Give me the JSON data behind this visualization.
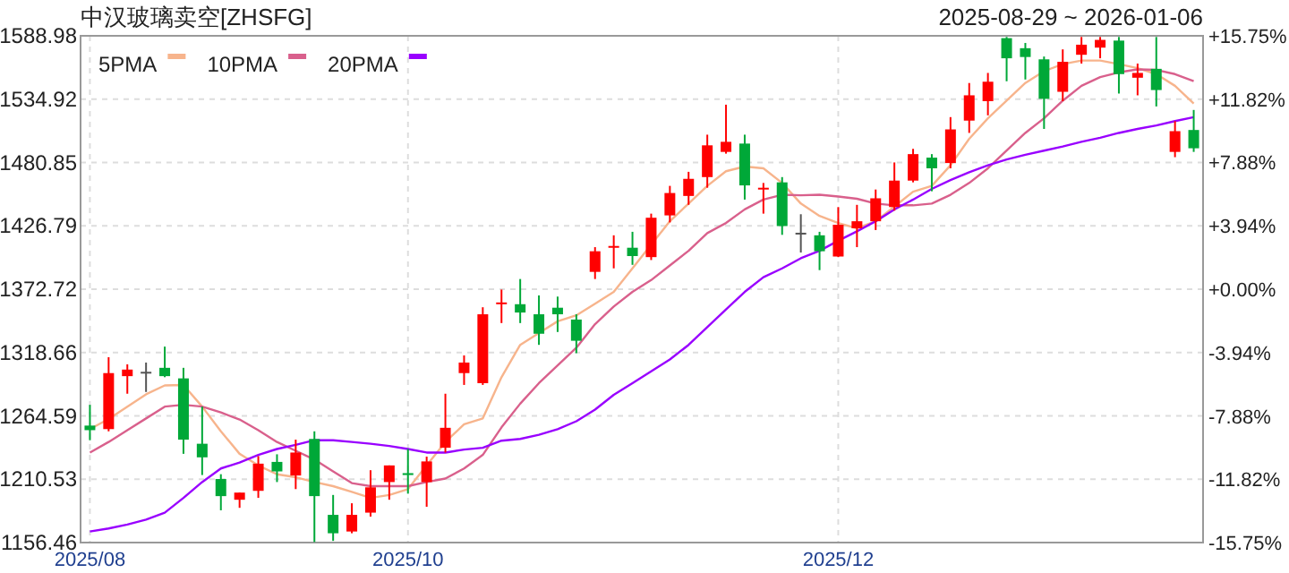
{
  "chart_data": {
    "type": "candlestick",
    "title": "中汉玻璃卖空[ZHSFG]",
    "subtitle": "2025-08-29 ~ 2026-01-06",
    "categories": [
      "2025/08",
      null,
      null,
      null,
      null,
      null,
      null,
      null,
      null,
      null,
      null,
      null,
      null,
      null,
      null,
      null,
      null,
      "2025/10",
      null,
      null,
      null,
      null,
      null,
      null,
      null,
      null,
      null,
      null,
      null,
      null,
      null,
      null,
      null,
      null,
      null,
      null,
      null,
      null,
      null,
      null,
      "2025/12",
      null,
      null,
      null,
      null,
      null,
      null,
      null,
      null,
      null,
      null,
      null,
      null,
      null,
      null,
      null,
      null,
      null,
      null,
      null
    ],
    "ohlc": [
      [
        1256.3,
        1274.0,
        1243.8,
        1252.4
      ],
      [
        1253.3,
        1314.7,
        1251.4,
        1301.1
      ],
      [
        1298.5,
        1308.6,
        1283.5,
        1304.1
      ],
      [
        1302.2,
        1310.1,
        1285.0,
        1302.2
      ],
      [
        1305.6,
        1323.7,
        1297.6,
        1298.5
      ],
      [
        1296.6,
        1305.6,
        1232.2,
        1244.3
      ],
      [
        1240.8,
        1272.5,
        1214.1,
        1229.2
      ],
      [
        1210.7,
        1214.8,
        1184.0,
        1196.1
      ],
      [
        1193.0,
        1199.1,
        1186.1,
        1199.1
      ],
      [
        1200.6,
        1230.3,
        1194.6,
        1223.8
      ],
      [
        1225.3,
        1231.8,
        1208.1,
        1217.2
      ],
      [
        1213.7,
        1244.3,
        1202.1,
        1233.3
      ],
      [
        1244.9,
        1251.4,
        1156.9,
        1196.1
      ],
      [
        1180.1,
        1197.1,
        1157.9,
        1164.4
      ],
      [
        1165.9,
        1190.0,
        1164.4,
        1180.1
      ],
      [
        1182.0,
        1218.2,
        1178.6,
        1203.6
      ],
      [
        1208.1,
        1222.3,
        1193.0,
        1222.3
      ],
      [
        1215.7,
        1236.3,
        1198.2,
        1214.1
      ],
      [
        1208.1,
        1229.8,
        1187.0,
        1225.7
      ],
      [
        1237.4,
        1283.5,
        1233.3,
        1254.4
      ],
      [
        1301.1,
        1316.2,
        1291.0,
        1310.1
      ],
      [
        1292.5,
        1357.3,
        1291.0,
        1351.3
      ],
      [
        1359.9,
        1372.4,
        1343.8,
        1361.4
      ],
      [
        1359.9,
        1381.4,
        1343.8,
        1352.8
      ],
      [
        1351.3,
        1367.4,
        1325.2,
        1334.7
      ],
      [
        1356.9,
        1366.4,
        1336.2,
        1351.3
      ],
      [
        1346.8,
        1351.3,
        1318.1,
        1328.7
      ],
      [
        1387.5,
        1408.6,
        1381.4,
        1405.1
      ],
      [
        1408.1,
        1418.7,
        1390.5,
        1409.6
      ],
      [
        1408.1,
        1421.7,
        1393.5,
        1401.0
      ],
      [
        1400.1,
        1437.2,
        1397.6,
        1433.7
      ],
      [
        1435.7,
        1460.9,
        1429.7,
        1454.8
      ],
      [
        1452.3,
        1472.9,
        1444.7,
        1466.9
      ],
      [
        1468.4,
        1504.6,
        1459.3,
        1495.5
      ],
      [
        1489.9,
        1530.2,
        1488.4,
        1498.5
      ],
      [
        1497.0,
        1504.6,
        1449.2,
        1461.3
      ],
      [
        1457.8,
        1463.4,
        1437.2,
        1459.3
      ],
      [
        1463.9,
        1468.4,
        1419.1,
        1426.6
      ],
      [
        1420.9,
        1436.7,
        1404.0,
        1420.9
      ],
      [
        1418.7,
        1421.7,
        1389.0,
        1405.1
      ],
      [
        1400.6,
        1442.8,
        1400.1,
        1427.7
      ],
      [
        1424.7,
        1444.7,
        1408.6,
        1430.7
      ],
      [
        1430.7,
        1457.8,
        1423.2,
        1450.3
      ],
      [
        1442.8,
        1480.9,
        1439.8,
        1465.4
      ],
      [
        1465.4,
        1492.5,
        1463.9,
        1488.0
      ],
      [
        1485.0,
        1488.0,
        1456.3,
        1475.9
      ],
      [
        1480.4,
        1519.6,
        1475.9,
        1509.1
      ],
      [
        1516.6,
        1548.7,
        1506.1,
        1538.2
      ],
      [
        1533.2,
        1557.3,
        1521.1,
        1549.8
      ],
      [
        1587.0,
        1588.0,
        1550.2,
        1569.8
      ],
      [
        1578.4,
        1582.9,
        1551.7,
        1570.9
      ],
      [
        1568.9,
        1571.3,
        1509.5,
        1535.2
      ],
      [
        1541.2,
        1577.4,
        1533.2,
        1566.8
      ],
      [
        1572.8,
        1588.0,
        1565.3,
        1581.4
      ],
      [
        1578.9,
        1588.0,
        1569.8,
        1585.5
      ],
      [
        1584.9,
        1588.0,
        1539.7,
        1556.3
      ],
      [
        1553.2,
        1565.3,
        1538.2,
        1557.3
      ],
      [
        1560.8,
        1588.0,
        1528.7,
        1542.7
      ],
      [
        1489.9,
        1516.2,
        1485.4,
        1507.6
      ],
      [
        1508.6,
        1525.7,
        1489.9,
        1493.0
      ]
    ],
    "colors": [
      "#00a838",
      "#ff0000",
      "#ff0000",
      "#555555",
      "#00a838",
      "#00a838",
      "#00a838",
      "#00a838",
      "#ff0000",
      "#ff0000",
      "#00a838",
      "#ff0000",
      "#00a838",
      "#00a838",
      "#ff0000",
      "#ff0000",
      "#ff0000",
      "#00a838",
      "#ff0000",
      "#ff0000",
      "#ff0000",
      "#ff0000",
      "#ff0000",
      "#00a838",
      "#00a838",
      "#00a838",
      "#00a838",
      "#ff0000",
      "#ff0000",
      "#00a838",
      "#ff0000",
      "#ff0000",
      "#ff0000",
      "#ff0000",
      "#ff0000",
      "#00a838",
      "#ff0000",
      "#00a838",
      "#555555",
      "#00a838",
      "#ff0000",
      "#ff0000",
      "#ff0000",
      "#ff0000",
      "#ff0000",
      "#00a838",
      "#ff0000",
      "#ff0000",
      "#ff0000",
      "#00a838",
      "#00a838",
      "#00a838",
      "#ff0000",
      "#ff0000",
      "#ff0000",
      "#00a838",
      "#ff0000",
      "#00a838",
      "#ff0000",
      "#00a838"
    ],
    "series": [
      {
        "name": "5PMA",
        "type": "line",
        "color": "#f7b48c",
        "values": [
          1253.3,
          1261.9,
          1272.5,
          1283.0,
          1290.6,
          1291.0,
          1272.5,
          1251.4,
          1232.2,
          1222.3,
          1214.7,
          1212.2,
          1208.1,
          1204.6,
          1199.7,
          1194.6,
          1197.1,
          1202.1,
          1222.3,
          1242.3,
          1257.4,
          1262.4,
          1297.6,
          1325.2,
          1335.3,
          1345.3,
          1350.4,
          1360.3,
          1370.4,
          1390.5,
          1410.7,
          1430.7,
          1445.8,
          1460.9,
          1473.4,
          1477.4,
          1475.9,
          1463.4,
          1445.8,
          1435.2,
          1429.2,
          1424.7,
          1430.7,
          1443.2,
          1455.9,
          1460.9,
          1478.5,
          1501.1,
          1518.6,
          1533.6,
          1548.7,
          1558.8,
          1564.8,
          1567.9,
          1567.9,
          1564.8,
          1561.4,
          1556.3,
          1546.3,
          1531.2
        ]
      },
      {
        "name": "10PMA",
        "type": "line",
        "color": "#d9608c",
        "values": [
          1233.3,
          1242.3,
          1252.4,
          1262.4,
          1272.5,
          1274.0,
          1272.5,
          1267.5,
          1261.5,
          1252.4,
          1242.3,
          1234.8,
          1227.3,
          1217.2,
          1207.2,
          1204.6,
          1204.6,
          1204.6,
          1208.1,
          1211.1,
          1219.7,
          1231.3,
          1254.8,
          1275.0,
          1292.5,
          1307.6,
          1322.7,
          1342.9,
          1357.9,
          1370.4,
          1380.5,
          1393.0,
          1405.5,
          1420.6,
          1429.2,
          1440.8,
          1449.2,
          1453.3,
          1452.9,
          1453.3,
          1451.8,
          1449.9,
          1445.8,
          1444.3,
          1444.3,
          1445.8,
          1453.3,
          1463.4,
          1475.9,
          1491.0,
          1506.1,
          1518.6,
          1533.6,
          1546.3,
          1553.8,
          1557.8,
          1560.3,
          1559.9,
          1556.3,
          1550.2
        ]
      },
      {
        "name": "20PMA",
        "type": "line",
        "color": "#9900ff",
        "values": [
          1165.9,
          1168.5,
          1171.9,
          1176.0,
          1182.0,
          1194.6,
          1208.1,
          1219.7,
          1224.7,
          1231.3,
          1236.3,
          1239.8,
          1243.8,
          1243.8,
          1242.3,
          1240.8,
          1238.9,
          1236.3,
          1233.3,
          1233.3,
          1235.8,
          1237.4,
          1243.4,
          1244.9,
          1248.4,
          1253.3,
          1260.0,
          1269.9,
          1282.6,
          1292.5,
          1302.6,
          1312.7,
          1325.2,
          1340.3,
          1355.4,
          1370.4,
          1382.9,
          1390.5,
          1399.1,
          1405.5,
          1414.1,
          1422.1,
          1430.7,
          1440.8,
          1449.2,
          1458.3,
          1465.8,
          1472.5,
          1478.5,
          1483.5,
          1487.5,
          1491.0,
          1494.5,
          1498.5,
          1502.0,
          1506.1,
          1509.5,
          1512.5,
          1516.2,
          1519.6
        ]
      }
    ],
    "ylim": [
      1156.46,
      1588.98
    ],
    "yticks": [
      1156.46,
      1210.53,
      1264.59,
      1318.66,
      1372.72,
      1426.79,
      1480.85,
      1534.92,
      1588.98
    ],
    "y2lim": [
      -15.75,
      15.75
    ],
    "y2ticks": [
      {
        "value": 15.75,
        "label": "+15.75%"
      },
      {
        "value": 11.82,
        "label": "+11.82%"
      },
      {
        "value": 7.88,
        "label": "+7.88%"
      },
      {
        "value": 3.94,
        "label": "+3.94%"
      },
      {
        "value": 0,
        "label": "+0.00%"
      },
      {
        "value": -3.94,
        "label": "-3.94%"
      },
      {
        "value": -7.88,
        "label": "-7.88%"
      },
      {
        "value": -11.82,
        "label": "-11.82%"
      },
      {
        "value": -15.75,
        "label": "-15.75%"
      }
    ],
    "grid": true,
    "legend": "top left"
  }
}
